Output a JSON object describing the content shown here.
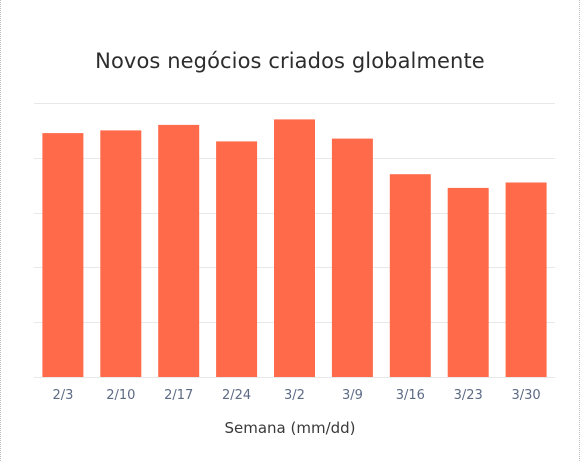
{
  "chart_data": {
    "type": "bar",
    "title": "Novos negócios criados globalmente",
    "xlabel": "Semana (mm/dd)",
    "ylabel": "",
    "categories": [
      "2/3",
      "2/10",
      "2/17",
      "2/24",
      "3/2",
      "3/9",
      "3/16",
      "3/23",
      "3/30"
    ],
    "values": [
      89,
      90,
      92,
      86,
      94,
      87,
      74,
      69,
      71
    ],
    "ylim": [
      0,
      100
    ],
    "grid": true,
    "y_tick_labels_visible": false,
    "colors": {
      "bar": "#ff6b4a",
      "grid": "#e8e8e8",
      "tick_label": "#5d6b86",
      "title": "#2d2d2d"
    }
  }
}
